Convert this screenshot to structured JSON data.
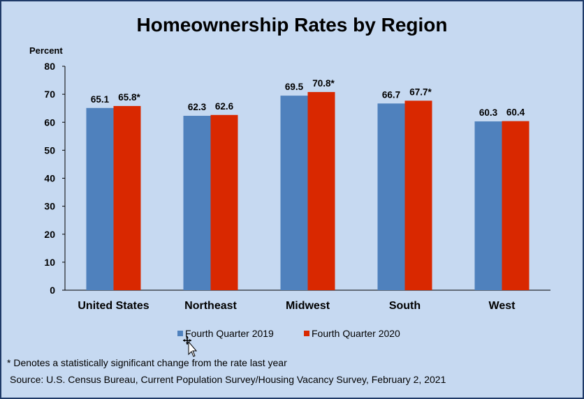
{
  "chart_data": {
    "type": "bar",
    "title": "Homeownership Rates by Region",
    "ylabel": "Percent",
    "xlabel": "",
    "ylim": [
      0,
      80
    ],
    "yticks": [
      0,
      10,
      20,
      30,
      40,
      50,
      60,
      70,
      80
    ],
    "grid": false,
    "legend_position": "bottom",
    "categories": [
      "United States",
      "Northeast",
      "Midwest",
      "South",
      "West"
    ],
    "series": [
      {
        "name": "Fourth Quarter 2019",
        "color": "#4f81bd",
        "values": [
          65.1,
          62.3,
          69.5,
          66.7,
          60.3
        ],
        "labels": [
          "65.1",
          "62.3",
          "69.5",
          "66.7",
          "60.3"
        ]
      },
      {
        "name": "Fourth Quarter 2020",
        "color": "#d92800",
        "values": [
          65.8,
          62.6,
          70.8,
          67.7,
          60.4
        ],
        "labels": [
          "65.8*",
          "62.6",
          "70.8*",
          "67.7*",
          "60.4"
        ]
      }
    ]
  },
  "notes": {
    "footnote": "* Denotes a statistically significant change from the rate last year",
    "source": "Source: U.S. Census Bureau, Current Population Survey/Housing Vacancy Survey, February 2, 2021"
  },
  "colors": {
    "background": "#c6d9f1",
    "border": "#1f3a68"
  }
}
